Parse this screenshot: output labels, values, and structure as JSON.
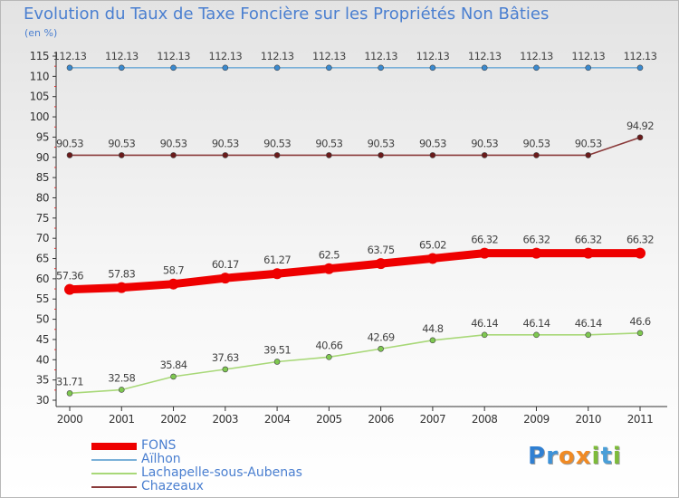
{
  "header": {
    "title": "Evolution du Taux de Taxe Foncière sur les Propriétés Non Bâties",
    "unit": "(en %)"
  },
  "logo": {
    "letters": [
      "P",
      "r",
      "o",
      "x",
      "i",
      "t",
      "i"
    ],
    "colors": [
      "#2f7fd2",
      "#3d92d9",
      "#f08a24",
      "#f08a24",
      "#7dbb3a",
      "#4a9fd8",
      "#7dbb3a"
    ]
  },
  "chart_data": {
    "type": "line",
    "title": "Evolution du Taux de Taxe Foncière sur les Propriétés Non Bâties",
    "ylabel": "(en %)",
    "xlabel": "",
    "ylim": [
      30,
      115
    ],
    "yticks": [
      30,
      35,
      40,
      45,
      50,
      55,
      60,
      65,
      70,
      75,
      80,
      85,
      90,
      95,
      100,
      105,
      110,
      115
    ],
    "x": [
      "2000",
      "2001",
      "2002",
      "2003",
      "2004",
      "2005",
      "2006",
      "2007",
      "2008",
      "2009",
      "2010",
      "2011"
    ],
    "grid": false,
    "legend_position": "bottom-left",
    "series": [
      {
        "name": "FONS",
        "color": "#ee0000",
        "marker_color": "#ee0000",
        "width": "thick",
        "values": [
          57.36,
          57.83,
          58.7,
          60.17,
          61.27,
          62.5,
          63.75,
          65.02,
          66.32,
          66.32,
          66.32,
          66.32
        ],
        "labels": [
          "57.36",
          "57.83",
          "58.7",
          "60.17",
          "61.27",
          "62.5",
          "63.75",
          "65.02",
          "66.32",
          "66.32",
          "66.32",
          "66.32"
        ]
      },
      {
        "name": "Aïlhon",
        "color": "#7ab0d8",
        "marker_color": "#3a8ad0",
        "width": "thin",
        "values": [
          112.13,
          112.13,
          112.13,
          112.13,
          112.13,
          112.13,
          112.13,
          112.13,
          112.13,
          112.13,
          112.13,
          112.13
        ],
        "labels": [
          "112.13",
          "112.13",
          "112.13",
          "112.13",
          "112.13",
          "112.13",
          "112.13",
          "112.13",
          "112.13",
          "112.13",
          "112.13",
          "112.13"
        ]
      },
      {
        "name": "Lachapelle-sous-Aubenas",
        "color": "#a8d878",
        "marker_color": "#7ec850",
        "width": "thin",
        "values": [
          31.71,
          32.58,
          35.84,
          37.63,
          39.51,
          40.66,
          42.69,
          44.8,
          46.14,
          46.14,
          46.14,
          46.6
        ],
        "labels": [
          "31.71",
          "32.58",
          "35.84",
          "37.63",
          "39.51",
          "40.66",
          "42.69",
          "44.8",
          "46.14",
          "46.14",
          "46.14",
          "46.6"
        ]
      },
      {
        "name": "Chazeaux",
        "color": "#8a3a3a",
        "marker_color": "#6a1a1a",
        "width": "thin",
        "values": [
          90.53,
          90.53,
          90.53,
          90.53,
          90.53,
          90.53,
          90.53,
          90.53,
          90.53,
          90.53,
          90.53,
          94.92
        ],
        "labels": [
          "90.53",
          "90.53",
          "90.53",
          "90.53",
          "90.53",
          "90.53",
          "90.53",
          "90.53",
          "90.53",
          "90.53",
          "90.53",
          "94.92"
        ]
      }
    ]
  }
}
